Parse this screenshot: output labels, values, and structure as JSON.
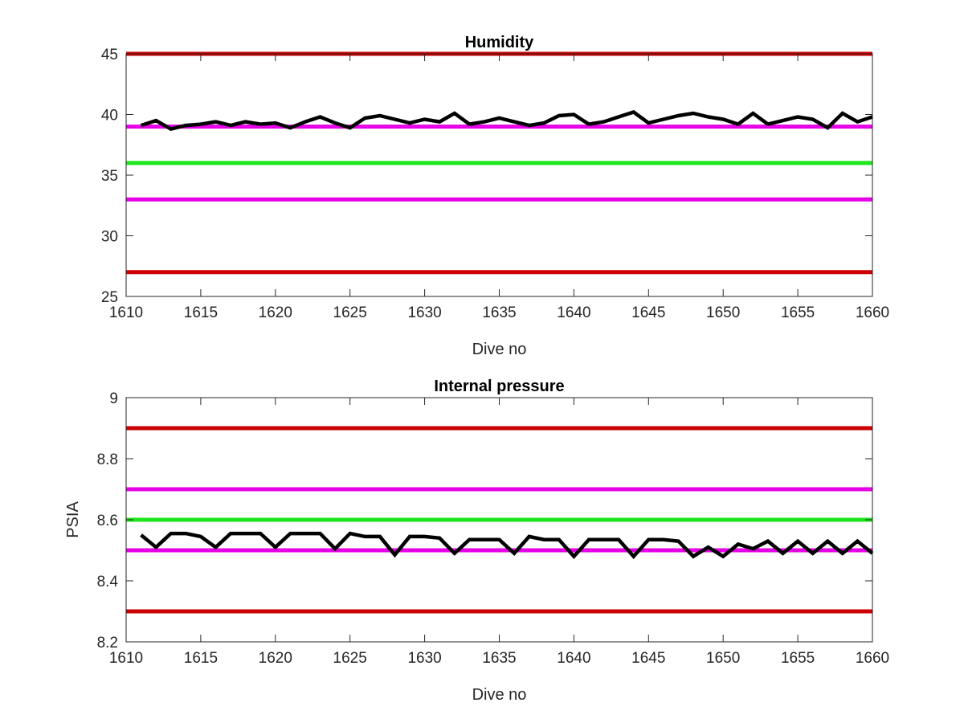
{
  "chart_data": [
    {
      "type": "line",
      "title": "Humidity",
      "xlabel": "Dive no",
      "ylabel": "",
      "xlim": [
        1610,
        1660
      ],
      "ylim": [
        25,
        45
      ],
      "xticks": [
        1610,
        1615,
        1620,
        1625,
        1630,
        1635,
        1640,
        1645,
        1650,
        1655,
        1660
      ],
      "yticks": [
        25,
        30,
        35,
        40,
        45
      ],
      "xtick_labels": [
        "1610",
        "1615",
        "1620",
        "1625",
        "1630",
        "1635",
        "1640",
        "1645",
        "1650",
        "1655",
        "1660"
      ],
      "ytick_labels": [
        "25",
        "30",
        "35",
        "40",
        "45"
      ],
      "grid": false,
      "reference_lines": [
        {
          "y": 45,
          "color": "#cc0000"
        },
        {
          "y": 39,
          "color": "#e600e6"
        },
        {
          "y": 36,
          "color": "#1ee61e"
        },
        {
          "y": 33,
          "color": "#e600e6"
        },
        {
          "y": 27,
          "color": "#cc0000"
        }
      ],
      "series": [
        {
          "color": "#000000",
          "x": [
            1611,
            1612,
            1613,
            1614,
            1615,
            1616,
            1617,
            1618,
            1619,
            1620,
            1621,
            1622,
            1623,
            1624,
            1625,
            1626,
            1627,
            1628,
            1629,
            1630,
            1631,
            1632,
            1633,
            1634,
            1635,
            1636,
            1637,
            1638,
            1639,
            1640,
            1641,
            1642,
            1643,
            1644,
            1645,
            1646,
            1647,
            1648,
            1649,
            1650,
            1651,
            1652,
            1653,
            1654,
            1655,
            1656,
            1657,
            1658,
            1659,
            1660
          ],
          "y": [
            39.1,
            39.5,
            38.8,
            39.1,
            39.2,
            39.4,
            39.1,
            39.4,
            39.2,
            39.3,
            38.9,
            39.4,
            39.8,
            39.3,
            38.9,
            39.7,
            39.9,
            39.6,
            39.3,
            39.6,
            39.4,
            40.1,
            39.2,
            39.4,
            39.7,
            39.4,
            39.1,
            39.3,
            39.9,
            40.0,
            39.2,
            39.4,
            39.8,
            40.2,
            39.3,
            39.6,
            39.9,
            40.1,
            39.8,
            39.6,
            39.2,
            40.1,
            39.2,
            39.5,
            39.8,
            39.6,
            38.9,
            40.1,
            39.4,
            39.8
          ]
        }
      ]
    },
    {
      "type": "line",
      "title": "Internal pressure",
      "xlabel": "Dive no",
      "ylabel": "PSIA",
      "xlim": [
        1610,
        1660
      ],
      "ylim": [
        8.2,
        9.0
      ],
      "xticks": [
        1610,
        1615,
        1620,
        1625,
        1630,
        1635,
        1640,
        1645,
        1650,
        1655,
        1660
      ],
      "yticks": [
        8.2,
        8.4,
        8.6,
        8.8,
        9.0
      ],
      "xtick_labels": [
        "1610",
        "1615",
        "1620",
        "1625",
        "1630",
        "1635",
        "1640",
        "1645",
        "1650",
        "1655",
        "1660"
      ],
      "ytick_labels": [
        "8.2",
        "8.4",
        "8.6",
        "8.8",
        "9"
      ],
      "grid": false,
      "reference_lines": [
        {
          "y": 8.9,
          "color": "#cc0000"
        },
        {
          "y": 8.7,
          "color": "#e600e6"
        },
        {
          "y": 8.6,
          "color": "#1ee61e"
        },
        {
          "y": 8.5,
          "color": "#e600e6"
        },
        {
          "y": 8.3,
          "color": "#cc0000"
        }
      ],
      "series": [
        {
          "color": "#000000",
          "x": [
            1611,
            1612,
            1613,
            1614,
            1615,
            1616,
            1617,
            1618,
            1619,
            1620,
            1621,
            1622,
            1623,
            1624,
            1625,
            1626,
            1627,
            1628,
            1629,
            1630,
            1631,
            1632,
            1633,
            1634,
            1635,
            1636,
            1637,
            1638,
            1639,
            1640,
            1641,
            1642,
            1643,
            1644,
            1645,
            1646,
            1647,
            1648,
            1649,
            1650,
            1651,
            1652,
            1653,
            1654,
            1655,
            1656,
            1657,
            1658,
            1659,
            1660
          ],
          "y": [
            8.55,
            8.51,
            8.555,
            8.555,
            8.545,
            8.51,
            8.555,
            8.555,
            8.555,
            8.51,
            8.555,
            8.555,
            8.555,
            8.505,
            8.555,
            8.545,
            8.545,
            8.485,
            8.545,
            8.545,
            8.54,
            8.49,
            8.535,
            8.535,
            8.535,
            8.49,
            8.545,
            8.535,
            8.535,
            8.48,
            8.535,
            8.535,
            8.535,
            8.48,
            8.535,
            8.535,
            8.53,
            8.48,
            8.51,
            8.48,
            8.52,
            8.505,
            8.53,
            8.49,
            8.53,
            8.49,
            8.53,
            8.49,
            8.53,
            8.49
          ]
        }
      ]
    }
  ]
}
